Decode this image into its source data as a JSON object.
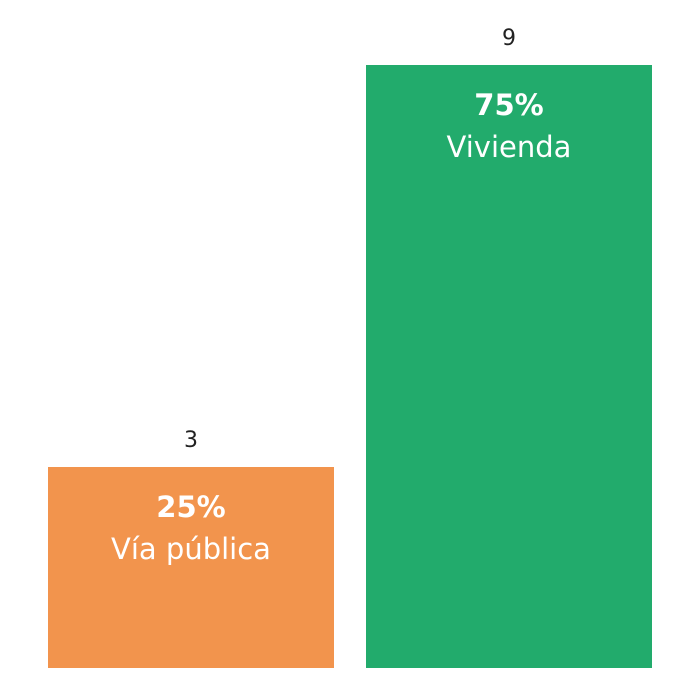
{
  "chart_data": {
    "type": "bar",
    "categories": [
      "Vía pública",
      "Vivienda"
    ],
    "values": [
      3,
      9
    ],
    "percent_labels": [
      "25%",
      "75%"
    ],
    "colors": [
      "#f2944d",
      "#22ab6c"
    ],
    "ylim": [
      0,
      9
    ],
    "grid": false,
    "legend": "none",
    "title": "",
    "xlabel": "",
    "ylabel": ""
  }
}
